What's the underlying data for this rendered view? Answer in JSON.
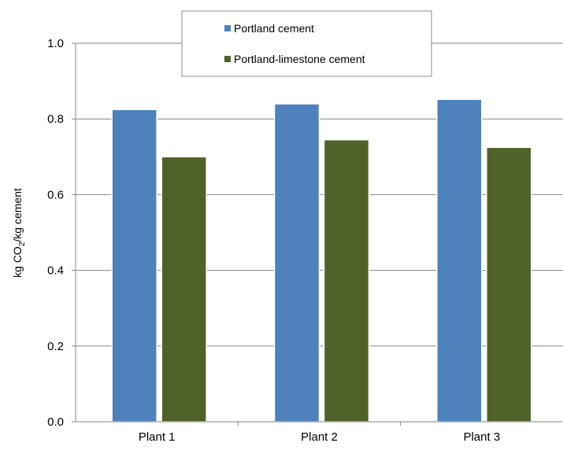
{
  "chart_data": {
    "type": "bar",
    "title": "",
    "xlabel": "",
    "ylabel": "kg CO2/kg cement",
    "ylabel_parts": {
      "pre": "kg CO",
      "sub": "2",
      "post": "/kg cement"
    },
    "categories": [
      "Plant 1",
      "Plant 2",
      "Plant 3"
    ],
    "series": [
      {
        "name": "Portland cement",
        "color": "#4F81BD",
        "values": [
          0.825,
          0.84,
          0.852
        ]
      },
      {
        "name": "Portland-limestone cement",
        "color": "#4F6228",
        "values": [
          0.7,
          0.745,
          0.725
        ]
      }
    ],
    "ylim": [
      0,
      1.0
    ],
    "yticks": [
      "0.0",
      "0.2",
      "0.4",
      "0.6",
      "0.8",
      "1.0"
    ],
    "grid": true,
    "legend_position": "top-center"
  }
}
